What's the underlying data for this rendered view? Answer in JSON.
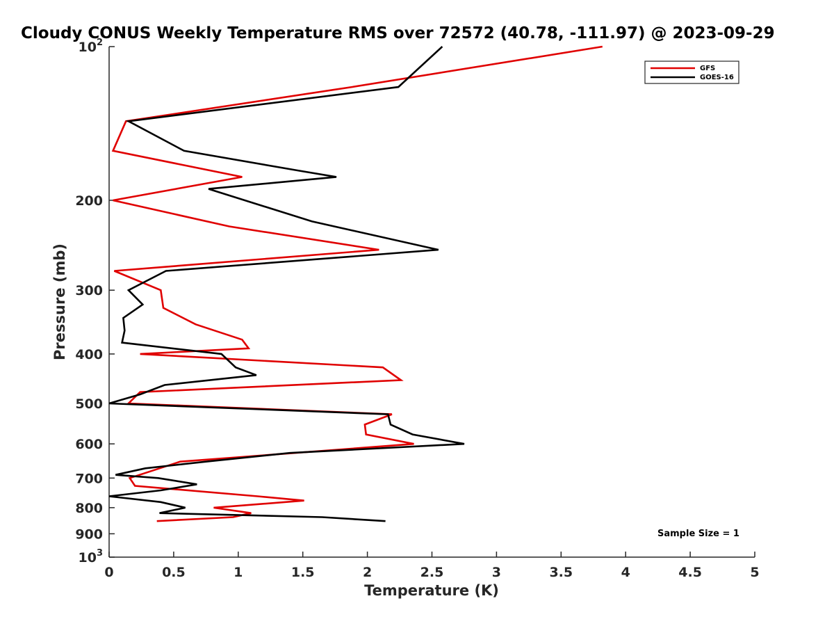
{
  "chart_data": {
    "type": "line",
    "title": "Cloudy CONUS Weekly Temperature RMS over 72572 (40.78, -111.97) @ 2023-09-29",
    "xlabel": "Temperature (K)",
    "ylabel": "Pressure (mb)",
    "xlim": [
      0,
      5
    ],
    "ylim": [
      100,
      1000
    ],
    "yscale": "log",
    "y_reversed": true,
    "x_ticks": [
      0,
      0.5,
      1,
      1.5,
      2,
      2.5,
      3,
      3.5,
      4,
      4.5,
      5
    ],
    "x_tick_labels": [
      "0",
      "0.5",
      "1",
      "1.5",
      "2",
      "2.5",
      "3",
      "3.5",
      "4",
      "4.5",
      "5"
    ],
    "y_ticks": [
      100,
      200,
      300,
      400,
      500,
      600,
      700,
      800,
      900,
      1000
    ],
    "y_tick_labels": [
      {
        "base": "10",
        "exp": "2"
      },
      {
        "base": "200",
        "exp": ""
      },
      {
        "base": "300",
        "exp": ""
      },
      {
        "base": "400",
        "exp": ""
      },
      {
        "base": "500",
        "exp": ""
      },
      {
        "base": "600",
        "exp": ""
      },
      {
        "base": "700",
        "exp": ""
      },
      {
        "base": "800",
        "exp": ""
      },
      {
        "base": "900",
        "exp": ""
      },
      {
        "base": "10",
        "exp": "3"
      }
    ],
    "legend": {
      "position": "top-right",
      "entries": [
        "GFS",
        "GOES-16"
      ]
    },
    "annotation": "Sample Size = 1",
    "series": [
      {
        "name": "GFS",
        "color": "#e00000",
        "points": [
          [
            3.82,
            100
          ],
          [
            1.88,
            120
          ],
          [
            0.13,
            140
          ],
          [
            0.03,
            160
          ],
          [
            1.03,
            180
          ],
          [
            0.03,
            200
          ],
          [
            0.93,
            225
          ],
          [
            2.09,
            250
          ],
          [
            0.04,
            275
          ],
          [
            0.4,
            300
          ],
          [
            0.42,
            325
          ],
          [
            0.67,
            350
          ],
          [
            1.03,
            375
          ],
          [
            1.08,
            390
          ],
          [
            0.24,
            400
          ],
          [
            2.12,
            425
          ],
          [
            2.26,
            450
          ],
          [
            0.24,
            475
          ],
          [
            0.15,
            500
          ],
          [
            2.19,
            525
          ],
          [
            1.98,
            550
          ],
          [
            1.99,
            575
          ],
          [
            2.36,
            600
          ],
          [
            0.55,
            650
          ],
          [
            0.16,
            700
          ],
          [
            0.2,
            725
          ],
          [
            1.15,
            760
          ],
          [
            1.51,
            775
          ],
          [
            0.81,
            800
          ],
          [
            1.1,
            820
          ],
          [
            0.96,
            835
          ],
          [
            0.37,
            850
          ]
        ]
      },
      {
        "name": "GOES-16",
        "color": "#000000",
        "points": [
          [
            2.58,
            100
          ],
          [
            2.24,
            120
          ],
          [
            0.15,
            140
          ],
          [
            0.58,
            160
          ],
          [
            1.47,
            175
          ],
          [
            1.76,
            180
          ],
          [
            0.77,
            190
          ],
          [
            1.57,
            220
          ],
          [
            2.55,
            250
          ],
          [
            0.44,
            275
          ],
          [
            0.15,
            300
          ],
          [
            0.26,
            320
          ],
          [
            0.11,
            340
          ],
          [
            0.12,
            360
          ],
          [
            0.1,
            380
          ],
          [
            0.87,
            400
          ],
          [
            0.98,
            425
          ],
          [
            1.14,
            440
          ],
          [
            0.43,
            460
          ],
          [
            0.24,
            480
          ],
          [
            0.0,
            500
          ],
          [
            2.16,
            525
          ],
          [
            2.18,
            550
          ],
          [
            2.35,
            575
          ],
          [
            2.75,
            600
          ],
          [
            1.4,
            625
          ],
          [
            0.75,
            650
          ],
          [
            0.28,
            670
          ],
          [
            0.05,
            690
          ],
          [
            0.38,
            700
          ],
          [
            0.68,
            720
          ],
          [
            0.4,
            740
          ],
          [
            0.0,
            760
          ],
          [
            0.4,
            780
          ],
          [
            0.59,
            800
          ],
          [
            0.39,
            820
          ],
          [
            1.65,
            835
          ],
          [
            2.14,
            850
          ]
        ]
      }
    ]
  }
}
